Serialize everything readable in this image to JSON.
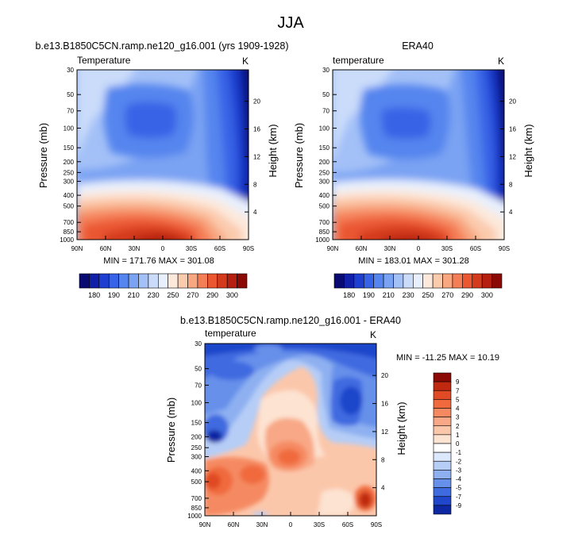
{
  "main_title": "JJA",
  "chart_data": [
    {
      "type": "heatmap",
      "id": "model",
      "title": "b.e13.B1850C5CN.ramp.ne120_g16.001 (yrs 1909-1928)",
      "left_label": "Temperature",
      "right_label": "K",
      "xlabel": "",
      "ylabel": "Pressure (mb)",
      "y2label": "Height (km)",
      "x_ticks": [
        "90N",
        "60N",
        "30N",
        "0",
        "30S",
        "60S",
        "90S"
      ],
      "y_ticks": [
        30,
        50,
        70,
        100,
        150,
        200,
        250,
        300,
        400,
        500,
        700,
        850,
        1000
      ],
      "y2_ticks": [
        20,
        16,
        12,
        8,
        4
      ],
      "ylim": [
        1000,
        30
      ],
      "y_scale": "log",
      "stats": "MIN = 171.76   MAX = 301.08",
      "colorbar_ticks": [
        "180",
        "190",
        "210",
        "230",
        "250",
        "270",
        "290",
        "300"
      ],
      "colorbar_colors": [
        "#0a0a73",
        "#1020a8",
        "#1f3fd0",
        "#3763e6",
        "#5585ee",
        "#7aa3f3",
        "#a3c0f7",
        "#cadcfa",
        "#e8f0fd",
        "#fde9dc",
        "#fbcbae",
        "#f8a781",
        "#f47e56",
        "#ea5731",
        "#d43a1c",
        "#b52010",
        "#8b0a06"
      ]
    },
    {
      "type": "heatmap",
      "id": "obs",
      "title": "ERA40",
      "left_label": "temperature",
      "right_label": "K",
      "xlabel": "",
      "ylabel": "Pressure (mb)",
      "y2label": "Height (km)",
      "x_ticks": [
        "90N",
        "60N",
        "30N",
        "0",
        "30S",
        "60S",
        "90S"
      ],
      "y_ticks": [
        30,
        50,
        70,
        100,
        150,
        200,
        250,
        300,
        400,
        500,
        700,
        850,
        1000
      ],
      "y2_ticks": [
        20,
        16,
        12,
        8,
        4
      ],
      "ylim": [
        1000,
        30
      ],
      "y_scale": "log",
      "stats": "MIN = 183.01   MAX = 301.28",
      "colorbar_ticks": [
        "180",
        "190",
        "210",
        "230",
        "250",
        "270",
        "290",
        "300"
      ],
      "colorbar_colors": [
        "#0a0a73",
        "#1020a8",
        "#1f3fd0",
        "#3763e6",
        "#5585ee",
        "#7aa3f3",
        "#a3c0f7",
        "#cadcfa",
        "#e8f0fd",
        "#fde9dc",
        "#fbcbae",
        "#f8a781",
        "#f47e56",
        "#ea5731",
        "#d43a1c",
        "#b52010",
        "#8b0a06"
      ]
    },
    {
      "type": "heatmap",
      "id": "diff",
      "title": "b.e13.B1850C5CN.ramp.ne120_g16.001 - ERA40",
      "left_label": "temperature",
      "right_label": "K",
      "xlabel": "",
      "ylabel": "Pressure (mb)",
      "y2label": "Height (km)",
      "x_ticks": [
        "90N",
        "60N",
        "30N",
        "0",
        "30S",
        "60S",
        "90S"
      ],
      "y_ticks": [
        30,
        50,
        70,
        100,
        150,
        200,
        250,
        300,
        400,
        500,
        700,
        850,
        1000
      ],
      "y2_ticks": [
        20,
        16,
        12,
        8,
        4
      ],
      "ylim": [
        1000,
        30
      ],
      "y_scale": "log",
      "stats": "MIN = -11.25   MAX =  10.19",
      "colorbar_ticks": [
        "9",
        "7",
        "5",
        "4",
        "3",
        "2",
        "1",
        "0",
        "-1",
        "-2",
        "-3",
        "-4",
        "-5",
        "-7",
        "-9"
      ],
      "colorbar_colors": [
        "#8b0a06",
        "#c0290f",
        "#e04a24",
        "#f06a3e",
        "#f58a62",
        "#f8a886",
        "#fbc7ab",
        "#fde3d2",
        "#ffffff",
        "#dce8fb",
        "#b6cdf6",
        "#8eb0f1",
        "#6690ea",
        "#3f6be0",
        "#1f46cb",
        "#0e27a3"
      ]
    }
  ]
}
